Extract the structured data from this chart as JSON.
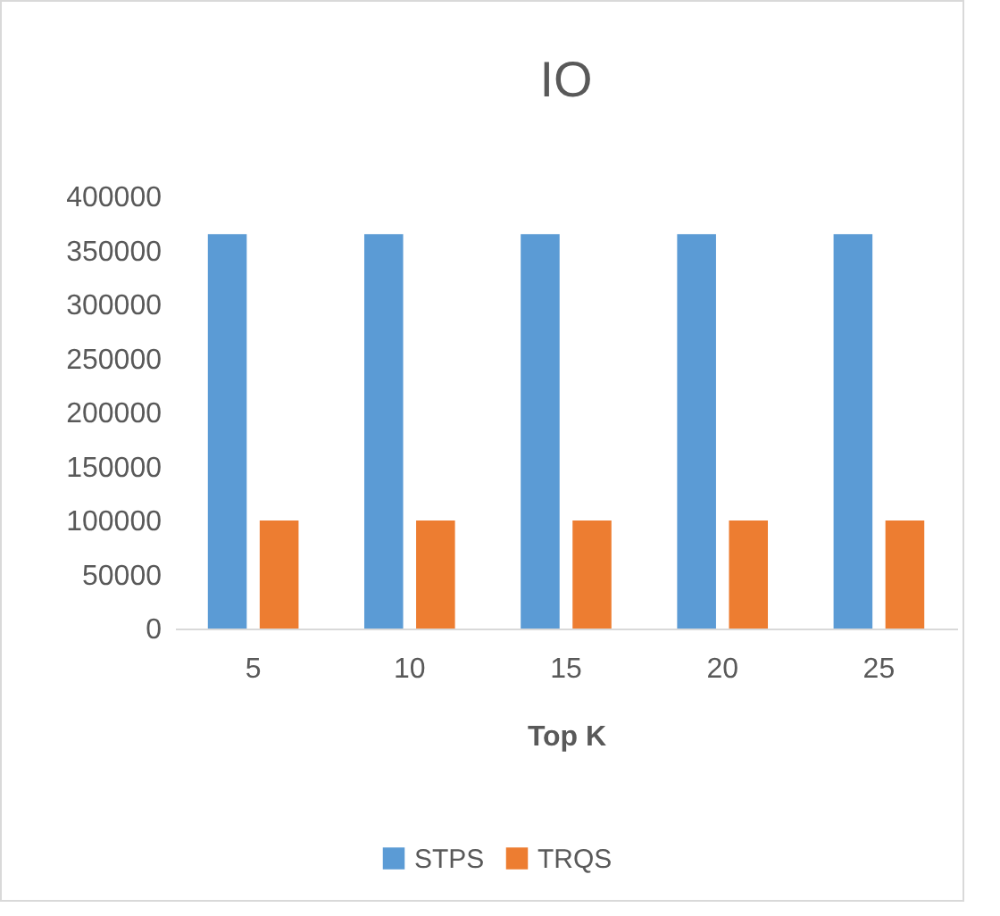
{
  "chart_data": {
    "type": "bar",
    "title": "IO",
    "xlabel": "Top K",
    "categories": [
      "5",
      "10",
      "15",
      "20",
      "25"
    ],
    "series": [
      {
        "name": "STPS",
        "color": "#5b9bd5",
        "values": [
          365000,
          365000,
          365000,
          365000,
          365000
        ]
      },
      {
        "name": "TRQS",
        "color": "#ed7d31",
        "values": [
          100000,
          100000,
          100000,
          100000,
          100000
        ]
      }
    ],
    "ylim": [
      0,
      400000
    ],
    "yticks": [
      0,
      50000,
      100000,
      150000,
      200000,
      250000,
      300000,
      350000,
      400000
    ],
    "grid": false,
    "legend": "bottom"
  }
}
